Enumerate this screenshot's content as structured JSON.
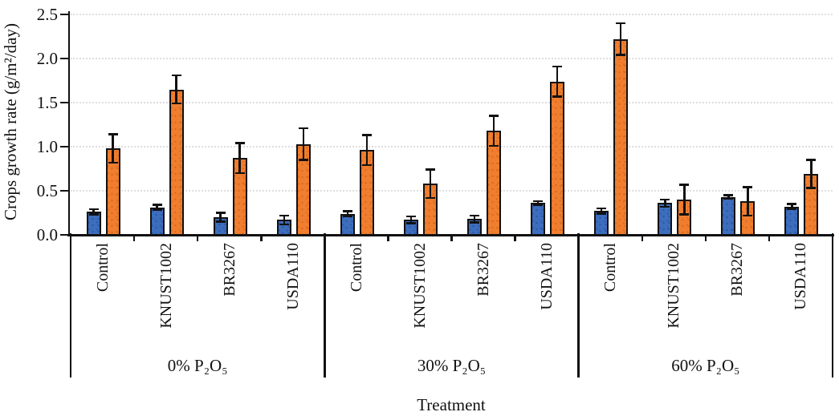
{
  "chart_data": {
    "type": "bar",
    "title": "",
    "xlabel": "Treatment",
    "ylabel": "Crops growth rate (g/m²/day)",
    "ylim": [
      0,
      2.5
    ],
    "ytick_labels": [
      "0.0",
      "0.5",
      "1.0",
      "1.5",
      "2.0",
      "2.5"
    ],
    "grid": "horizontal dotted light-gray at each y tick",
    "legend": "none",
    "axis_color": "#111111",
    "gridline_color": "#dedede",
    "groups": [
      "0% P₂O₅",
      "30% P₂O₅",
      "60% P₂O₅"
    ],
    "categories_per_group": [
      "Control",
      "KNUST1002",
      "BR3267",
      "USDA110"
    ],
    "series": [
      {
        "name": "blue-series",
        "color": "#3D6DBD",
        "dot_color": "#2B58A6",
        "values": [
          [
            0.26,
            0.31,
            0.2,
            0.17
          ],
          [
            0.24,
            0.17,
            0.18,
            0.36
          ],
          [
            0.27,
            0.36,
            0.43,
            0.32
          ]
        ],
        "errors": [
          [
            0.03,
            0.03,
            0.05,
            0.05
          ],
          [
            0.03,
            0.04,
            0.04,
            0.02
          ],
          [
            0.03,
            0.04,
            0.02,
            0.03
          ]
        ]
      },
      {
        "name": "orange-series",
        "color": "#F07E2E",
        "dot_color": "#D96A1E",
        "values": [
          [
            0.98,
            1.65,
            0.87,
            1.03
          ],
          [
            0.96,
            0.58,
            1.18,
            1.74
          ],
          [
            2.22,
            0.4,
            0.38,
            0.69
          ]
        ],
        "errors": [
          [
            0.16,
            0.16,
            0.17,
            0.18
          ],
          [
            0.17,
            0.16,
            0.17,
            0.17
          ],
          [
            0.18,
            0.17,
            0.16,
            0.16
          ]
        ]
      }
    ]
  }
}
